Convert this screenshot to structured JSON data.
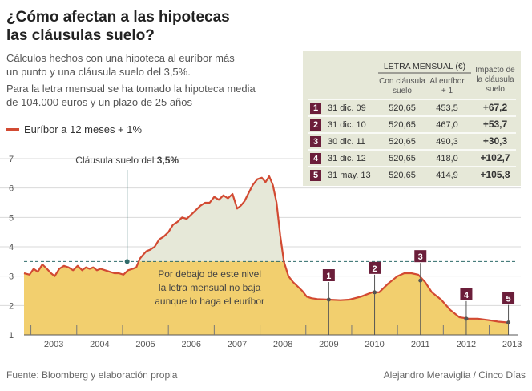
{
  "header": {
    "title_line1": "¿Cómo afectan a las hipotecas",
    "title_line2": "las cláusulas suelo?",
    "para1_line1": "Cálculos hechos con una hipoteca al euríbor más",
    "para1_line2": "un punto y una cláusula suelo del 3,5%.",
    "para2_line1": "Para la letra mensual se ha tomado la hipoteca media",
    "para2_line2": "de 104.000 euros y un plazo de 25 años"
  },
  "legend": {
    "series_label": "Euríbor a 12 meses + 1%"
  },
  "annotations": {
    "floor_prefix": "Cláusula suelo del ",
    "floor_value": "3,5%",
    "below_line1": "Por debajo de este nivel",
    "below_line2": "la letra mensual no baja",
    "below_line3": "aunque lo haga el euríbor"
  },
  "table": {
    "group_header": "LETRA MENSUAL (€)",
    "col_floor_line1": "Con cláusula",
    "col_floor_line2": "suelo",
    "col_euribor_line1": "Al euríbor",
    "col_euribor_line2": "+ 1",
    "col_impact_line1": "Impacto de",
    "col_impact_line2": "la cláusula",
    "col_impact_line3": "suelo",
    "rows": [
      {
        "num": "1",
        "date": "31 dic. 09",
        "with_floor": "520,65",
        "euribor": "453,5",
        "impact": "+67,2"
      },
      {
        "num": "2",
        "date": "31 dic. 10",
        "with_floor": "520,65",
        "euribor": "467,0",
        "impact": "+53,7"
      },
      {
        "num": "3",
        "date": "30 dic. 11",
        "with_floor": "520,65",
        "euribor": "490,3",
        "impact": "+30,3"
      },
      {
        "num": "4",
        "date": "31 dic. 12",
        "with_floor": "520,65",
        "euribor": "418,0",
        "impact": "+102,7"
      },
      {
        "num": "5",
        "date": "31 may. 13",
        "with_floor": "520,65",
        "euribor": "414,9",
        "impact": "+105,8"
      }
    ]
  },
  "footer": {
    "source": "Fuente: Bloomberg y elaboración propia",
    "credit": "Alejandro Meraviglia / Cinco Días"
  },
  "colors": {
    "line": "#d24a32",
    "fill_above": "#e6e8d8",
    "fill_below": "#f2cf6e",
    "floor_line": "#2f6b6a",
    "marker_bg": "#6b1e3a"
  },
  "chart_data": {
    "type": "area",
    "ylim": [
      1,
      7
    ],
    "yticks": [
      "1",
      "2",
      "3",
      "4",
      "5",
      "6",
      "7"
    ],
    "xlim": [
      2002.85,
      2013.55
    ],
    "xticks": [
      "2003",
      "2004",
      "2005",
      "2006",
      "2007",
      "2008",
      "2009",
      "2010",
      "2011",
      "2012",
      "2013"
    ],
    "floor": 3.5,
    "series": [
      {
        "name": "Euríbor a 12 meses + 1%",
        "x": [
          2002.85,
          2002.97,
          2003.06,
          2003.15,
          2003.25,
          2003.35,
          2003.44,
          2003.52,
          2003.62,
          2003.72,
          2003.82,
          2003.92,
          2004.02,
          2004.12,
          2004.2,
          2004.28,
          2004.36,
          2004.44,
          2004.52,
          2004.62,
          2004.72,
          2004.82,
          2004.92,
          2005.02,
          2005.12,
          2005.22,
          2005.3,
          2005.38,
          2005.46,
          2005.52,
          2005.6,
          2005.7,
          2005.8,
          2005.9,
          2006.0,
          2006.1,
          2006.2,
          2006.3,
          2006.4,
          2006.5,
          2006.6,
          2006.7,
          2006.8,
          2006.9,
          2007.0,
          2007.1,
          2007.2,
          2007.3,
          2007.4,
          2007.5,
          2007.58,
          2007.66,
          2007.74,
          2007.84,
          2007.94,
          2008.04,
          2008.12,
          2008.2,
          2008.28,
          2008.36,
          2008.44,
          2008.52,
          2008.62,
          2008.72,
          2008.82,
          2008.92,
          2009.02,
          2009.12,
          2009.25,
          2009.5,
          2009.75,
          2009.95,
          2010.2,
          2010.45,
          2010.6,
          2010.8,
          2011.0,
          2011.15,
          2011.3,
          2011.45,
          2011.6,
          2011.75,
          2011.95,
          2012.15,
          2012.35,
          2012.55,
          2012.75,
          2013.0,
          2013.2,
          2013.42
        ],
        "values": [
          3.1,
          3.05,
          3.25,
          3.15,
          3.4,
          3.25,
          3.1,
          3.0,
          3.25,
          3.35,
          3.3,
          3.2,
          3.35,
          3.2,
          3.3,
          3.25,
          3.3,
          3.2,
          3.25,
          3.2,
          3.15,
          3.1,
          3.1,
          3.05,
          3.2,
          3.25,
          3.3,
          3.6,
          3.75,
          3.85,
          3.9,
          4.0,
          4.25,
          4.35,
          4.5,
          4.75,
          4.85,
          5.0,
          4.95,
          5.1,
          5.25,
          5.4,
          5.5,
          5.5,
          5.7,
          5.6,
          5.75,
          5.65,
          5.8,
          5.3,
          5.4,
          5.55,
          5.8,
          6.1,
          6.3,
          6.35,
          6.2,
          6.4,
          6.1,
          5.5,
          4.4,
          3.5,
          3.0,
          2.8,
          2.65,
          2.5,
          2.3,
          2.25,
          2.22,
          2.2,
          2.18,
          2.2,
          2.3,
          2.45,
          2.45,
          2.75,
          3.0,
          3.1,
          3.1,
          3.05,
          2.8,
          2.45,
          2.2,
          1.85,
          1.6,
          1.55,
          1.55,
          1.5,
          1.45,
          1.42
        ]
      }
    ],
    "markers": [
      {
        "label": "1",
        "x": 2009.5,
        "y": 2.2
      },
      {
        "label": "2",
        "x": 2010.5,
        "y": 2.45
      },
      {
        "label": "3",
        "x": 2011.5,
        "y": 2.85
      },
      {
        "label": "4",
        "x": 2012.5,
        "y": 1.55
      },
      {
        "label": "5",
        "x": 2013.42,
        "y": 1.42
      }
    ]
  }
}
